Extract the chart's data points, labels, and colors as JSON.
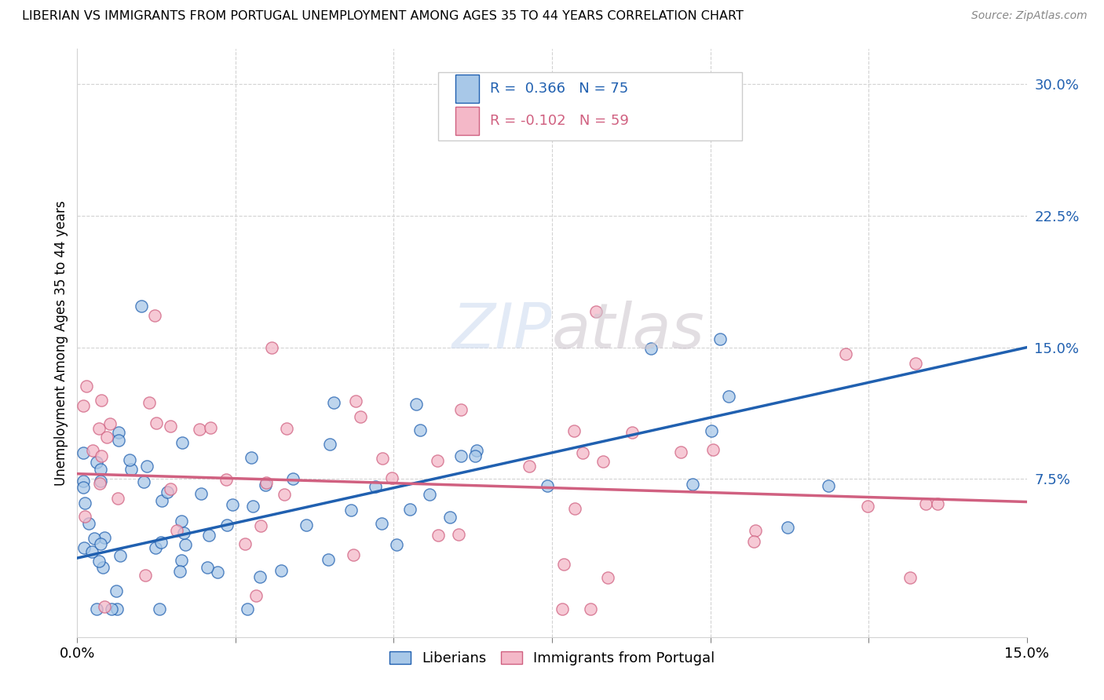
{
  "title": "LIBERIAN VS IMMIGRANTS FROM PORTUGAL UNEMPLOYMENT AMONG AGES 35 TO 44 YEARS CORRELATION CHART",
  "source": "Source: ZipAtlas.com",
  "ylabel": "Unemployment Among Ages 35 to 44 years",
  "yticks_labels": [
    "30.0%",
    "22.5%",
    "15.0%",
    "7.5%"
  ],
  "ytick_vals": [
    0.3,
    0.225,
    0.15,
    0.075
  ],
  "xrange": [
    0.0,
    0.15
  ],
  "yrange": [
    -0.015,
    0.32
  ],
  "legend_label1": "Liberians",
  "legend_label2": "Immigrants from Portugal",
  "color_blue": "#A8C8E8",
  "color_pink": "#F4B8C8",
  "color_line_blue": "#2060B0",
  "color_line_pink": "#D06080",
  "R1": 0.366,
  "N1": 75,
  "R2": -0.102,
  "N2": 59,
  "seed": 42,
  "blue_line_x0": 0.0,
  "blue_line_y0": 0.03,
  "blue_line_x1": 0.15,
  "blue_line_y1": 0.15,
  "pink_line_x0": 0.0,
  "pink_line_y0": 0.078,
  "pink_line_x1": 0.15,
  "pink_line_y1": 0.062
}
